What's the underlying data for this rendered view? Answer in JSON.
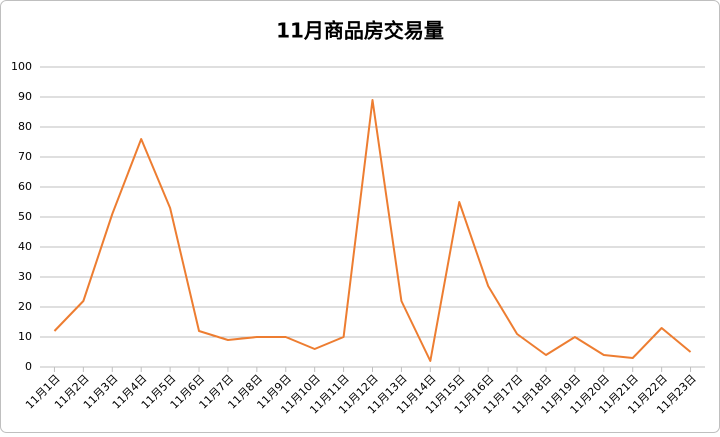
{
  "chart_data": {
    "type": "line",
    "title": "11月商品房交易量",
    "categories": [
      "11月1日",
      "11月2日",
      "11月3日",
      "11月4日",
      "11月5日",
      "11月6日",
      "11月7日",
      "11月8日",
      "11月9日",
      "11月10日",
      "11月11日",
      "11月12日",
      "11月13日",
      "11月14日",
      "11月15日",
      "11月16日",
      "11月17日",
      "11月18日",
      "11月19日",
      "11月20日",
      "11月21日",
      "11月22日",
      "11月23日"
    ],
    "values": [
      12,
      22,
      51,
      76,
      53,
      12,
      9,
      10,
      10,
      6,
      10,
      89,
      22,
      2,
      55,
      27,
      11,
      4,
      10,
      4,
      3,
      13,
      5
    ],
    "color": "#ed7d31",
    "ylim": [
      0,
      100
    ],
    "yticks": [
      0,
      10,
      20,
      30,
      40,
      50,
      60,
      70,
      80,
      90,
      100
    ],
    "grid": true
  }
}
